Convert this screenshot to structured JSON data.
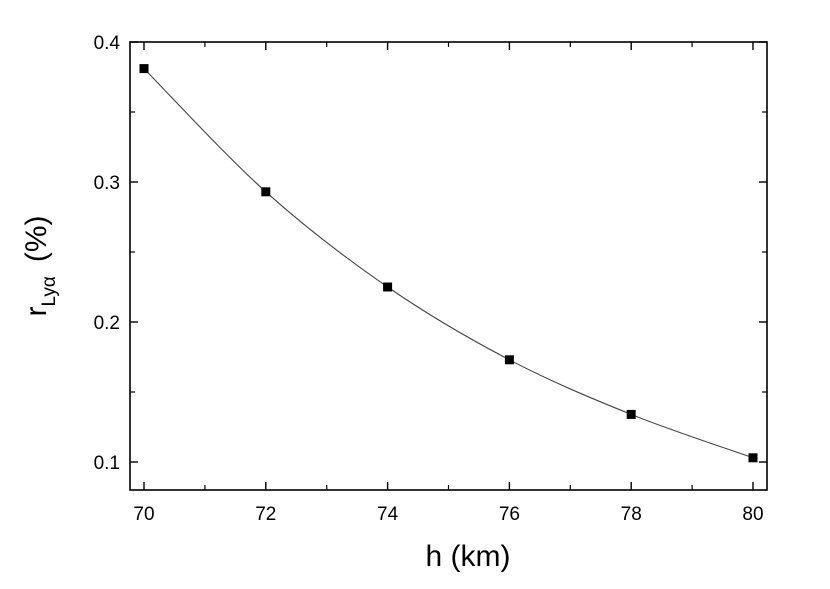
{
  "chart_data": {
    "type": "line",
    "title": "",
    "xlabel": "h (km)",
    "ylabel": {
      "main": "r",
      "subscript": "Lyα",
      "unit": "(%)"
    },
    "xlim": [
      70,
      80
    ],
    "ylim": [
      0.08,
      0.4
    ],
    "x_ticks": [
      70,
      72,
      74,
      76,
      78,
      80
    ],
    "y_ticks": [
      0.1,
      0.2,
      0.3,
      0.4
    ],
    "x_tick_labels": [
      "70",
      "72",
      "74",
      "76",
      "78",
      "80"
    ],
    "y_tick_labels": [
      "0.1",
      "0.2",
      "0.3",
      "0.4"
    ],
    "grid": false,
    "legend": "none",
    "series": [
      {
        "marker": "square",
        "color": "#000000",
        "x": [
          70,
          72,
          74,
          76,
          78,
          80
        ],
        "y": [
          0.381,
          0.293,
          0.225,
          0.173,
          0.134,
          0.103
        ]
      }
    ]
  }
}
